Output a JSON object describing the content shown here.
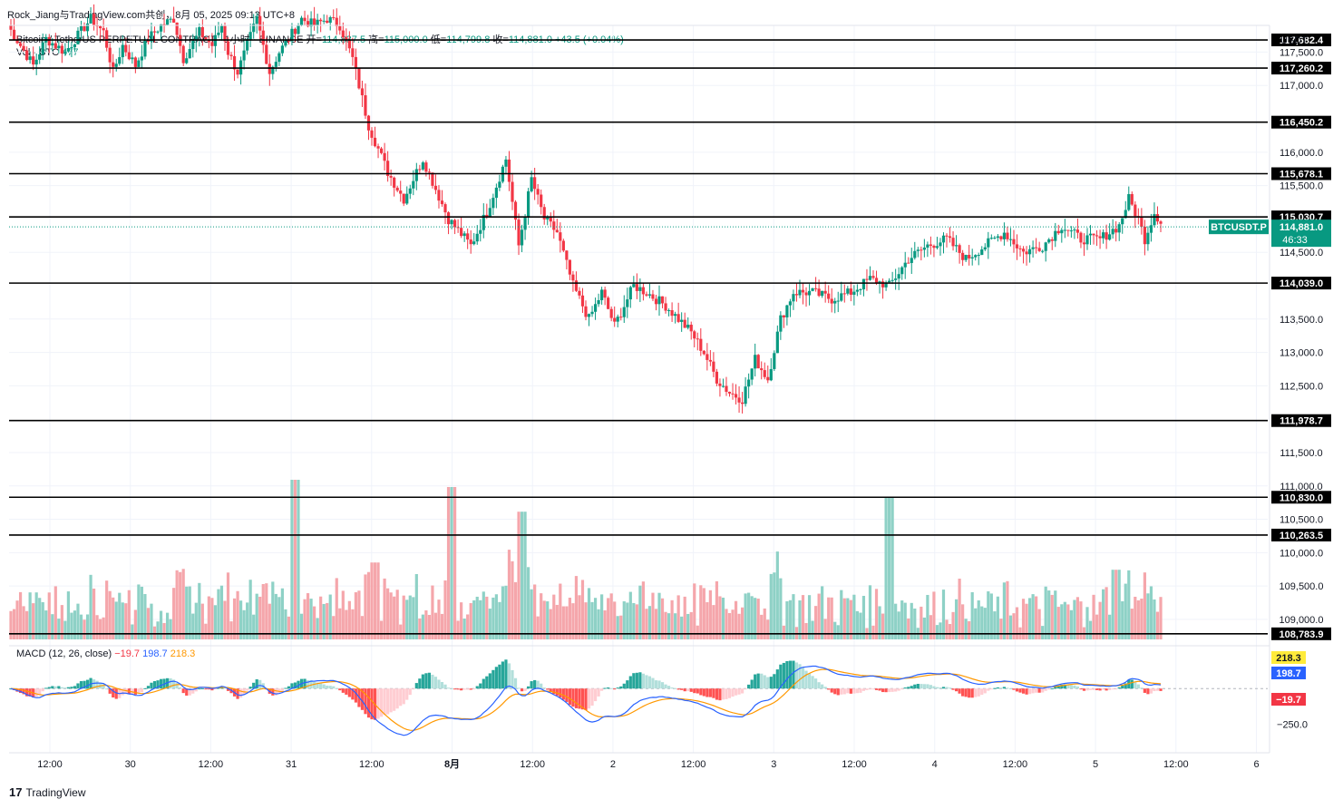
{
  "header": {
    "author": "Rock_Jiang与TradingView.com共创，8月 05, 2025 09:13 UTC+8",
    "symbol_title": "Bitcoin / TetherUS PERPETUAL CONTRACT · 1小时 · BINANCE",
    "open_label": "开=",
    "open_value": "114,837.5",
    "high_label": "高=",
    "high_value": "115,000.0",
    "low_label": "低=",
    "low_value": "114,799.8",
    "close_label": "收=",
    "close_value": "114,881.0",
    "change": "+43.5 (+0.04%)",
    "vol_label": "Vol · BTC",
    "vol_value": "477"
  },
  "macd_legend": {
    "label": "MACD (12, 26, close)",
    "hist": "−19.7",
    "macd": "198.7",
    "signal": "218.3"
  },
  "footer": {
    "brand": "TradingView",
    "logo": "17"
  },
  "colors": {
    "up": "#089981",
    "down": "#f23645",
    "up_vol": "#8ed1c6",
    "down_vol": "#f5a6ab",
    "macd": "#2962ff",
    "signal": "#ff9800"
  },
  "chart_data": {
    "type": "candlestick",
    "unit": "USDT",
    "price_ylim": [
      108700,
      117900
    ],
    "price_ticks": [
      "117,500.0",
      "117,000.0",
      "116,000.0",
      "115,500.0",
      "114,500.0",
      "113,500.0",
      "113,000.0",
      "112,500.0",
      "111,500.0",
      "111,000.0",
      "110,500.0",
      "110,000.0",
      "109,500.0",
      "109,000.0"
    ],
    "price_tick_values": [
      117500,
      117000,
      116000,
      115500,
      114500,
      113500,
      113000,
      112500,
      111500,
      111000,
      110500,
      110000,
      109500,
      109000
    ],
    "x_ticks": [
      "12:00",
      "30",
      "12:00",
      "31",
      "12:00",
      "8月",
      "12:00",
      "2",
      "12:00",
      "3",
      "12:00",
      "4",
      "12:00",
      "5",
      "12:00",
      "6"
    ],
    "levels": [
      {
        "value": 117682.4,
        "label": "117,682.4"
      },
      {
        "value": 117260.2,
        "label": "117,260.2"
      },
      {
        "value": 116450.2,
        "label": "116,450.2"
      },
      {
        "value": 115678.1,
        "label": "115,678.1"
      },
      {
        "value": 115030.7,
        "label": "115,030.7"
      },
      {
        "value": 114039.0,
        "label": "114,039.0"
      },
      {
        "value": 111978.7,
        "label": "111,978.7"
      },
      {
        "value": 110830.0,
        "label": "110,830.0"
      },
      {
        "value": 110263.5,
        "label": "110,263.5"
      },
      {
        "value": 108783.9,
        "label": "108,783.9"
      }
    ],
    "last_price": {
      "value": 114881.0,
      "label": "114,881.0",
      "countdown": "46:33",
      "symbol": "BTCUSDT.P"
    },
    "macd_ticks": [
      "−250.0"
    ],
    "macd_tick_values": [
      -250
    ],
    "macd_ylim": [
      -450,
      300
    ],
    "macd_badges": [
      {
        "label": "218.3",
        "value": 218.3
      },
      {
        "label": "198.7",
        "value": 198.7
      },
      {
        "label": "−19.7",
        "value": -19.7
      }
    ],
    "anchors": [
      [
        0,
        117900
      ],
      [
        8,
        117300
      ],
      [
        12,
        117700
      ],
      [
        18,
        117500
      ],
      [
        26,
        118000
      ],
      [
        30,
        117800
      ],
      [
        33,
        117200
      ],
      [
        36,
        117600
      ],
      [
        40,
        117300
      ],
      [
        44,
        117700
      ],
      [
        48,
        117900
      ],
      [
        52,
        118000
      ],
      [
        55,
        117400
      ],
      [
        60,
        117800
      ],
      [
        64,
        117600
      ],
      [
        67,
        117900
      ],
      [
        69,
        117500
      ],
      [
        72,
        117200
      ],
      [
        75,
        117600
      ],
      [
        78,
        118000
      ],
      [
        82,
        117200
      ],
      [
        85,
        117500
      ],
      [
        88,
        117700
      ],
      [
        92,
        118000
      ],
      [
        96,
        117900
      ],
      [
        100,
        118000
      ],
      [
        104,
        117900
      ],
      [
        108,
        117400
      ],
      [
        113,
        116400
      ],
      [
        119,
        115700
      ],
      [
        124,
        115300
      ],
      [
        130,
        115900
      ],
      [
        138,
        115000
      ],
      [
        145,
        114600
      ],
      [
        150,
        115100
      ],
      [
        156,
        115900
      ],
      [
        160,
        114600
      ],
      [
        164,
        115600
      ],
      [
        168,
        115000
      ],
      [
        172,
        114800
      ],
      [
        177,
        114000
      ],
      [
        182,
        113500
      ],
      [
        186,
        113900
      ],
      [
        190,
        113400
      ],
      [
        196,
        114000
      ],
      [
        200,
        113900
      ],
      [
        206,
        113700
      ],
      [
        210,
        113500
      ],
      [
        214,
        113300
      ],
      [
        218,
        113000
      ],
      [
        222,
        112600
      ],
      [
        226,
        112400
      ],
      [
        230,
        112300
      ],
      [
        234,
        112900
      ],
      [
        238,
        112600
      ],
      [
        242,
        113500
      ],
      [
        246,
        113900
      ],
      [
        252,
        113900
      ],
      [
        258,
        113800
      ],
      [
        264,
        113900
      ],
      [
        270,
        114100
      ],
      [
        276,
        114000
      ],
      [
        282,
        114400
      ],
      [
        288,
        114600
      ],
      [
        294,
        114700
      ],
      [
        300,
        114400
      ],
      [
        306,
        114600
      ],
      [
        312,
        114800
      ],
      [
        318,
        114500
      ],
      [
        324,
        114600
      ],
      [
        330,
        114900
      ],
      [
        336,
        114700
      ],
      [
        342,
        114700
      ],
      [
        348,
        114900
      ],
      [
        351,
        115300
      ],
      [
        354,
        115000
      ],
      [
        356,
        114700
      ],
      [
        359,
        115100
      ],
      [
        362,
        114900
      ]
    ],
    "volume_bumps": [
      [
        90,
        1100
      ],
      [
        115,
        530
      ],
      [
        139,
        1050
      ],
      [
        161,
        880
      ],
      [
        276,
        980
      ],
      [
        347,
        480
      ]
    ],
    "macd_lines_note": "derived from close prices with EMA(12,26,9)"
  }
}
